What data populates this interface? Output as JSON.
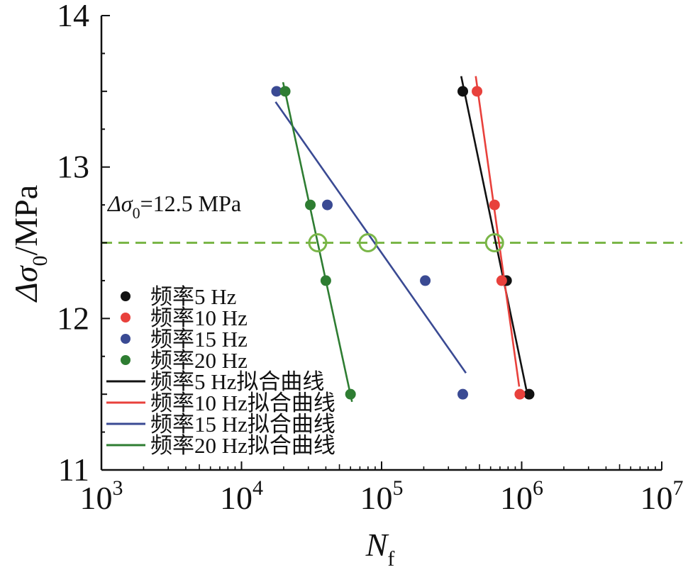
{
  "chart_data": {
    "type": "scatter",
    "xscale": "log",
    "xlim": [
      1000,
      10000000
    ],
    "ylim": [
      11,
      14
    ],
    "x_ticks": [
      {
        "value": 1000,
        "base": "10",
        "exp": "3"
      },
      {
        "value": 10000,
        "base": "10",
        "exp": "4"
      },
      {
        "value": 100000,
        "base": "10",
        "exp": "5"
      },
      {
        "value": 1000000,
        "base": "10",
        "exp": "6"
      },
      {
        "value": 10000000,
        "base": "10",
        "exp": "7"
      }
    ],
    "y_ticks": [
      {
        "value": 11,
        "label": "11"
      },
      {
        "value": 12,
        "label": "12"
      },
      {
        "value": 13,
        "label": "13"
      },
      {
        "value": 14,
        "label": "14"
      }
    ],
    "xlabel": {
      "main": "N",
      "sub": "f"
    },
    "ylabel": {
      "main": "Δσ",
      "sub": "0",
      "rest": "/MPa"
    },
    "legend_position": "bottom-left",
    "series": [
      {
        "name": "频率5 Hz",
        "fit_name": "频率5 Hz拟合曲线",
        "color": "#111111",
        "points": [
          [
            380000,
            13.5
          ],
          [
            780000,
            12.25
          ],
          [
            1130000,
            11.5
          ]
        ],
        "fit": [
          [
            370000,
            13.6
          ],
          [
            1080000,
            11.53
          ]
        ]
      },
      {
        "name": "频率10 Hz",
        "fit_name": "频率10 Hz拟合曲线",
        "color": "#e8413c",
        "points": [
          [
            480000,
            13.5
          ],
          [
            640000,
            12.75
          ],
          [
            720000,
            12.25
          ],
          [
            970000,
            11.5
          ]
        ],
        "fit": [
          [
            470000,
            13.6
          ],
          [
            960000,
            11.55
          ]
        ]
      },
      {
        "name": "频率15 Hz",
        "fit_name": "频率15 Hz拟合曲线",
        "color": "#3a4a93",
        "points": [
          [
            17800,
            13.5
          ],
          [
            41000,
            12.75
          ],
          [
            205000,
            12.25
          ],
          [
            380000,
            11.5
          ]
        ],
        "fit": [
          [
            17500,
            13.43
          ],
          [
            400000,
            11.64
          ]
        ]
      },
      {
        "name": "频率20 Hz",
        "fit_name": "频率20 Hz拟合曲线",
        "color": "#2e7d32",
        "points": [
          [
            20500,
            13.5
          ],
          [
            31000,
            12.75
          ],
          [
            40000,
            12.25
          ],
          [
            60000,
            11.5
          ]
        ],
        "fit": [
          [
            19800,
            13.56
          ],
          [
            61500,
            11.45
          ]
        ]
      }
    ],
    "reference_line": {
      "y": 12.5,
      "color": "#7ab648",
      "label": {
        "main": "Δσ",
        "sub": "0",
        "rest": "=12.5 MPa"
      }
    },
    "intersections": [
      {
        "x": 35000,
        "y": 12.5
      },
      {
        "x": 80000,
        "y": 12.5
      },
      {
        "x": 640000,
        "y": 12.5
      }
    ]
  }
}
